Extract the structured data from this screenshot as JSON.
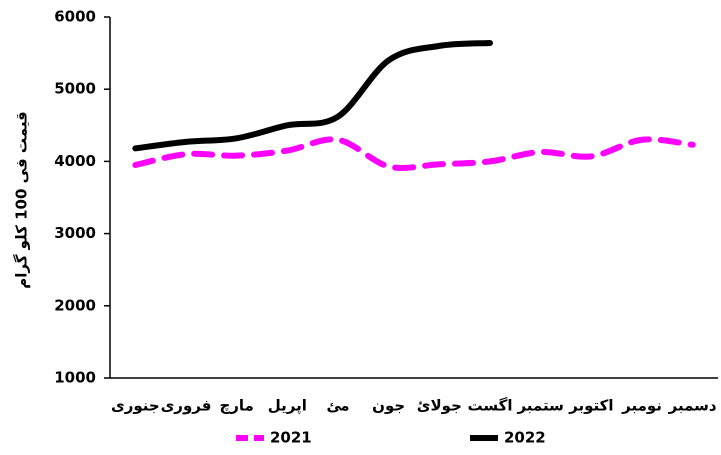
{
  "chart_data": {
    "type": "line",
    "y_label": "قیمت فی 100 کلو گرام",
    "categories": [
      "جنوری",
      "فروری",
      "مارچ",
      "اپریل",
      "مئ",
      "جون",
      "جولائ",
      "اگست",
      "ستمبر",
      "اکتوبر",
      "نومبر",
      "دسمبر"
    ],
    "series": [
      {
        "name": "2021",
        "color": "#ff00ff",
        "dashed": true,
        "values": [
          3950,
          4100,
          4080,
          4150,
          4300,
          3930,
          3960,
          4000,
          4130,
          4070,
          4300,
          4230
        ]
      },
      {
        "name": "2022",
        "color": "#000000",
        "dashed": false,
        "values": [
          4180,
          4270,
          4320,
          4500,
          4620,
          5400,
          5600,
          5640,
          null,
          null,
          null,
          null
        ]
      }
    ],
    "ylim": [
      1000,
      6000
    ],
    "yticks": [
      1000,
      2000,
      3000,
      4000,
      5000,
      6000
    ],
    "grid": false,
    "legend": "bottom"
  }
}
